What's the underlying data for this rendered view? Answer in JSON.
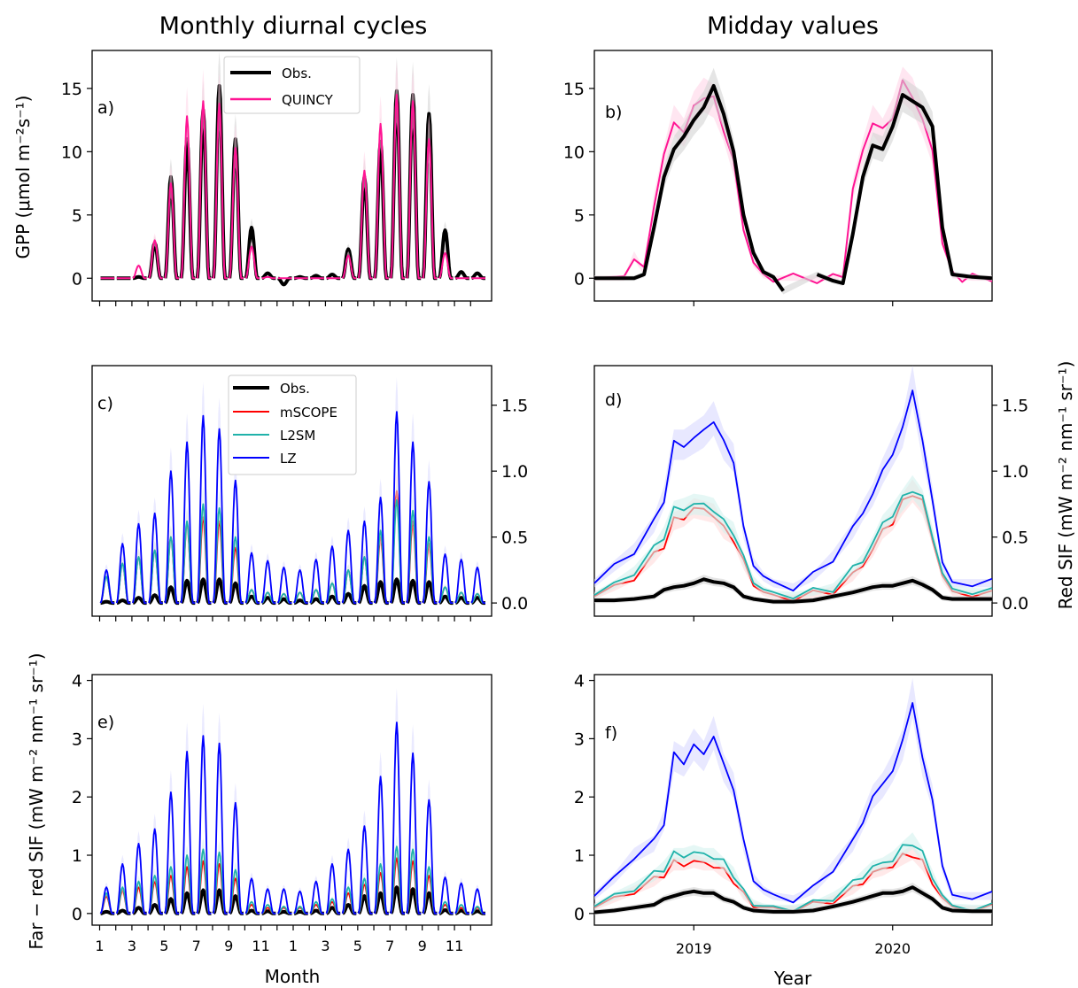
{
  "figure": {
    "col_titles": [
      "Monthly diurnal cycles",
      "Midday values"
    ],
    "ylabels": {
      "gpp": "GPP (μmol m⁻²s⁻¹)",
      "red": "Red SIF (mW m⁻² nm⁻¹ sr⁻¹)",
      "far": "Far − red SIF (mW m⁻² nm⁻¹ sr⁻¹)"
    },
    "xlabel_left": "Month",
    "xlabel_right": "Year",
    "panel_labels": [
      "a)",
      "b)",
      "c)",
      "d)",
      "e)",
      "f)"
    ],
    "legend_top": [
      "Obs.",
      "QUINCY"
    ],
    "legend_mid": [
      "Obs.",
      "mSCOPE",
      "L2SM",
      "LZ"
    ]
  },
  "colors": {
    "obs": "#000000",
    "quincy": "#ff1493",
    "mscope": "#ff0000",
    "l2sm": "#20b2aa",
    "lz": "#0000ff",
    "lz_band": "#d9d9ff",
    "quincy_band": "#ffd6e8",
    "obs_band": "#d3d3d3"
  },
  "chart_data": [
    {
      "panel": "a",
      "type": "line",
      "title": "Monthly diurnal cycles",
      "xlabel": "",
      "ylabel": "GPP (μmol m⁻²s⁻¹)",
      "ylim": [
        -1.8,
        18
      ],
      "yticks": [
        0,
        5,
        10,
        15
      ],
      "months": [
        "1",
        "2",
        "3",
        "4",
        "5",
        "6",
        "7",
        "8",
        "9",
        "10",
        "11",
        "12",
        "1",
        "2",
        "3",
        "4",
        "5",
        "6",
        "7",
        "8",
        "9",
        "10",
        "11",
        "12"
      ],
      "series": [
        {
          "name": "Obs.",
          "daily_peak": [
            0.0,
            0.0,
            0.1,
            2.8,
            8.0,
            11.0,
            13.3,
            15.2,
            11.0,
            4.0,
            0.4,
            -0.5,
            0.1,
            0.2,
            0.3,
            2.3,
            8.0,
            10.8,
            14.8,
            14.5,
            13.0,
            3.8,
            0.5,
            0.4
          ]
        },
        {
          "name": "QUINCY",
          "daily_peak": [
            0.0,
            0.0,
            1.0,
            3.0,
            7.5,
            12.8,
            14.0,
            13.8,
            10.3,
            2.5,
            0.1,
            0.0,
            0.0,
            0.0,
            0.0,
            1.8,
            8.5,
            12.2,
            14.5,
            14.0,
            11.0,
            2.0,
            0.0,
            0.0
          ]
        }
      ]
    },
    {
      "panel": "b",
      "type": "line",
      "title": "Midday values",
      "ylim": [
        -1.8,
        18
      ],
      "yticks": [
        0,
        5,
        10,
        15
      ],
      "xlim": [
        2018.5,
        2020.5
      ],
      "xticks": [
        "2019",
        "2020"
      ],
      "series": [
        {
          "name": "Obs.",
          "x": [
            2018.5,
            2018.7,
            2018.75,
            2018.8,
            2018.85,
            2018.9,
            2018.95,
            2019.0,
            2019.05,
            2019.1,
            2019.15,
            2019.2,
            2019.25,
            2019.3,
            2019.35,
            2019.4,
            2019.45,
            null,
            2019.62,
            2019.7,
            2019.75,
            2019.8,
            2019.85,
            2019.9,
            2019.95,
            2020.0,
            2020.05,
            2020.1,
            2020.15,
            2020.2,
            2020.25,
            2020.3,
            2020.35,
            2020.4,
            2020.5
          ],
          "y": [
            0,
            0,
            0.3,
            4.0,
            8.0,
            10.2,
            11.2,
            12.5,
            13.5,
            15.2,
            13.0,
            10.0,
            5.0,
            2.0,
            0.5,
            0.1,
            -1.0,
            null,
            0.3,
            -0.2,
            -0.4,
            3.5,
            8.0,
            10.5,
            10.2,
            12.0,
            14.5,
            14.0,
            13.5,
            12.0,
            4.0,
            0.3,
            0.2,
            0.1,
            0.0
          ]
        },
        {
          "name": "QUINCY",
          "x": [
            2018.5,
            2018.65,
            2018.7,
            2018.75,
            2018.8,
            2018.85,
            2018.9,
            2018.95,
            2019.0,
            2019.05,
            2019.1,
            2019.15,
            2019.2,
            2019.25,
            2019.3,
            2019.35,
            2019.4,
            2019.5,
            2019.62,
            2019.7,
            2019.75,
            2019.8,
            2019.85,
            2019.9,
            2019.95,
            2020.0,
            2020.05,
            2020.1,
            2020.15,
            2020.2,
            2020.25,
            2020.3,
            2020.35,
            2020.4,
            2020.5
          ],
          "y": [
            0,
            0,
            1.8,
            0.5,
            6.0,
            9.5,
            12.5,
            11.5,
            13.5,
            14.5,
            14.0,
            12.0,
            9.0,
            4.0,
            1.2,
            0.2,
            0.0,
            0.0,
            0.0,
            0.0,
            0.3,
            7.0,
            10.0,
            12.5,
            11.5,
            13.0,
            15.3,
            14.5,
            12.5,
            10.0,
            3.0,
            0.2,
            0.1,
            0.0,
            0.0
          ]
        }
      ]
    },
    {
      "panel": "c",
      "type": "line",
      "ylabel": "Red SIF (mW m⁻² nm⁻¹ sr⁻¹)",
      "ylim": [
        -0.1,
        1.8
      ],
      "yticks": [
        0.0,
        0.5,
        1.0,
        1.5
      ],
      "series": [
        {
          "name": "Obs.",
          "daily_peak": [
            0.01,
            0.02,
            0.04,
            0.06,
            0.12,
            0.17,
            0.18,
            0.18,
            0.15,
            0.05,
            0.04,
            0.03,
            0.02,
            0.03,
            0.05,
            0.07,
            0.13,
            0.16,
            0.18,
            0.17,
            0.16,
            0.05,
            0.04,
            0.04
          ]
        },
        {
          "name": "mSCOPE",
          "daily_peak": [
            0.2,
            0.3,
            0.35,
            0.4,
            0.5,
            0.6,
            0.65,
            0.62,
            0.42,
            0.1,
            0.08,
            0.07,
            0.08,
            0.1,
            0.15,
            0.25,
            0.35,
            0.5,
            0.85,
            0.62,
            0.45,
            0.12,
            0.08,
            0.07
          ]
        },
        {
          "name": "L2SM",
          "daily_peak": [
            0.2,
            0.3,
            0.35,
            0.4,
            0.5,
            0.62,
            0.75,
            0.72,
            0.5,
            0.1,
            0.08,
            0.07,
            0.08,
            0.1,
            0.15,
            0.25,
            0.35,
            0.55,
            0.78,
            0.7,
            0.5,
            0.12,
            0.08,
            0.07
          ]
        },
        {
          "name": "LZ",
          "daily_peak": [
            0.25,
            0.45,
            0.6,
            0.68,
            1.0,
            1.22,
            1.42,
            1.32,
            0.93,
            0.38,
            0.32,
            0.27,
            0.25,
            0.33,
            0.43,
            0.55,
            0.62,
            0.8,
            1.45,
            1.22,
            0.92,
            0.37,
            0.33,
            0.27
          ]
        }
      ]
    },
    {
      "panel": "d",
      "type": "line",
      "ylabel": "Red SIF (mW m⁻² nm⁻¹ sr⁻¹)",
      "ylim": [
        -0.1,
        1.8
      ],
      "yticks": [
        0.0,
        0.5,
        1.0,
        1.5
      ],
      "xlim": [
        2018.5,
        2020.5
      ],
      "xticks": [
        "2019",
        "2020"
      ],
      "x": [
        2018.5,
        2018.6,
        2018.7,
        2018.8,
        2018.85,
        2018.9,
        2018.95,
        2019.0,
        2019.05,
        2019.1,
        2019.15,
        2019.2,
        2019.25,
        2019.3,
        2019.35,
        2019.4,
        2019.5,
        2019.6,
        2019.7,
        2019.8,
        2019.85,
        2019.9,
        2019.95,
        2020.0,
        2020.05,
        2020.1,
        2020.15,
        2020.2,
        2020.25,
        2020.3,
        2020.4,
        2020.5
      ],
      "series": [
        {
          "name": "Obs.",
          "y": [
            0.02,
            0.02,
            0.03,
            0.05,
            0.1,
            0.12,
            0.13,
            0.15,
            0.18,
            0.16,
            0.15,
            0.12,
            0.05,
            0.03,
            0.02,
            0.01,
            0.01,
            0.02,
            0.05,
            0.08,
            0.1,
            0.12,
            0.13,
            0.13,
            0.15,
            0.17,
            0.14,
            0.1,
            0.04,
            0.03,
            0.03,
            0.03
          ]
        },
        {
          "name": "mSCOPE",
          "y": [
            0.05,
            0.12,
            0.2,
            0.35,
            0.45,
            0.62,
            0.65,
            0.72,
            0.7,
            0.68,
            0.55,
            0.5,
            0.3,
            0.15,
            0.08,
            0.05,
            0.04,
            0.06,
            0.1,
            0.2,
            0.3,
            0.4,
            0.55,
            0.62,
            0.75,
            0.85,
            0.75,
            0.5,
            0.2,
            0.08,
            0.07,
            0.06
          ]
        },
        {
          "name": "L2SM",
          "y": [
            0.06,
            0.14,
            0.24,
            0.4,
            0.52,
            0.7,
            0.72,
            0.75,
            0.74,
            0.72,
            0.6,
            0.55,
            0.33,
            0.17,
            0.1,
            0.07,
            0.06,
            0.08,
            0.12,
            0.25,
            0.33,
            0.45,
            0.6,
            0.68,
            0.78,
            0.88,
            0.78,
            0.52,
            0.22,
            0.1,
            0.09,
            0.08
          ]
        },
        {
          "name": "LZ",
          "y": [
            0.15,
            0.28,
            0.4,
            0.6,
            0.8,
            1.2,
            1.2,
            1.25,
            1.3,
            1.4,
            1.2,
            1.1,
            0.55,
            0.3,
            0.2,
            0.15,
            0.12,
            0.2,
            0.35,
            0.55,
            0.7,
            0.82,
            1.0,
            1.15,
            1.3,
            1.65,
            1.2,
            0.8,
            0.3,
            0.15,
            0.15,
            0.15
          ]
        }
      ]
    },
    {
      "panel": "e",
      "type": "line",
      "xlabel": "Month",
      "ylabel": "Far − red SIF (mW m⁻² nm⁻¹ sr⁻¹)",
      "ylim": [
        -0.2,
        4.1
      ],
      "yticks": [
        0,
        1,
        2,
        3,
        4
      ],
      "xticks": [
        "1",
        "3",
        "5",
        "7",
        "9",
        "11",
        "1",
        "3",
        "5",
        "7",
        "9",
        "11"
      ],
      "series": [
        {
          "name": "Obs.",
          "daily_peak": [
            0.03,
            0.05,
            0.1,
            0.15,
            0.25,
            0.35,
            0.4,
            0.4,
            0.3,
            0.05,
            0.04,
            0.03,
            0.03,
            0.05,
            0.1,
            0.15,
            0.3,
            0.35,
            0.45,
            0.42,
            0.35,
            0.06,
            0.05,
            0.04
          ]
        },
        {
          "name": "mSCOPE",
          "daily_peak": [
            0.3,
            0.4,
            0.45,
            0.55,
            0.65,
            0.8,
            0.9,
            0.85,
            0.6,
            0.15,
            0.1,
            0.1,
            0.1,
            0.15,
            0.2,
            0.35,
            0.5,
            0.7,
            0.95,
            0.9,
            0.65,
            0.15,
            0.1,
            0.1
          ]
        },
        {
          "name": "L2SM",
          "daily_peak": [
            0.35,
            0.45,
            0.55,
            0.65,
            0.8,
            1.0,
            1.1,
            1.05,
            0.75,
            0.2,
            0.15,
            0.12,
            0.12,
            0.2,
            0.25,
            0.45,
            0.6,
            0.85,
            1.15,
            1.1,
            0.8,
            0.2,
            0.15,
            0.12
          ]
        },
        {
          "name": "LZ",
          "daily_peak": [
            0.45,
            0.85,
            1.2,
            1.45,
            2.08,
            2.78,
            3.05,
            2.92,
            1.9,
            0.6,
            0.42,
            0.42,
            0.38,
            0.55,
            0.85,
            1.1,
            1.5,
            2.35,
            3.28,
            2.75,
            1.95,
            0.62,
            0.52,
            0.42
          ]
        }
      ]
    },
    {
      "panel": "f",
      "type": "line",
      "xlabel": "Year",
      "ylim": [
        -0.2,
        4.1
      ],
      "yticks": [
        0,
        1,
        2,
        3,
        4
      ],
      "xlim": [
        2018.5,
        2020.5
      ],
      "xticks": [
        "2019",
        "2020"
      ],
      "x": [
        2018.5,
        2018.6,
        2018.7,
        2018.8,
        2018.85,
        2018.9,
        2018.95,
        2019.0,
        2019.05,
        2019.1,
        2019.15,
        2019.2,
        2019.25,
        2019.3,
        2019.35,
        2019.4,
        2019.5,
        2019.6,
        2019.7,
        2019.8,
        2019.85,
        2019.9,
        2019.95,
        2020.0,
        2020.05,
        2020.1,
        2020.15,
        2020.2,
        2020.25,
        2020.3,
        2020.4,
        2020.5
      ],
      "series": [
        {
          "name": "Obs.",
          "y": [
            0.02,
            0.05,
            0.1,
            0.15,
            0.25,
            0.3,
            0.35,
            0.38,
            0.35,
            0.35,
            0.25,
            0.2,
            0.1,
            0.05,
            0.04,
            0.03,
            0.03,
            0.05,
            0.12,
            0.2,
            0.25,
            0.3,
            0.35,
            0.35,
            0.38,
            0.45,
            0.35,
            0.25,
            0.1,
            0.05,
            0.04,
            0.04
          ]
        },
        {
          "name": "mSCOPE",
          "y": [
            0.1,
            0.25,
            0.4,
            0.55,
            0.7,
            0.85,
            0.85,
            0.9,
            0.85,
            0.85,
            0.7,
            0.6,
            0.3,
            0.15,
            0.1,
            0.08,
            0.08,
            0.12,
            0.25,
            0.4,
            0.55,
            0.7,
            0.75,
            0.85,
            0.95,
            1.05,
            0.85,
            0.55,
            0.25,
            0.1,
            0.08,
            0.08
          ]
        },
        {
          "name": "L2SM",
          "y": [
            0.12,
            0.3,
            0.45,
            0.65,
            0.8,
            1.0,
            1.0,
            1.05,
            1.0,
            1.0,
            0.85,
            0.7,
            0.35,
            0.18,
            0.12,
            0.1,
            0.1,
            0.15,
            0.3,
            0.5,
            0.65,
            0.8,
            0.85,
            0.95,
            1.1,
            1.25,
            1.0,
            0.65,
            0.3,
            0.12,
            0.1,
            0.1
          ]
        },
        {
          "name": "LZ",
          "y": [
            0.3,
            0.6,
            1.0,
            1.2,
            1.6,
            2.7,
            2.6,
            2.9,
            2.7,
            3.1,
            2.5,
            2.2,
            1.2,
            0.6,
            0.4,
            0.3,
            0.25,
            0.4,
            0.8,
            1.2,
            1.6,
            2.0,
            2.2,
            2.5,
            2.9,
            3.7,
            2.6,
            2.0,
            0.8,
            0.3,
            0.3,
            0.3
          ]
        }
      ]
    }
  ]
}
